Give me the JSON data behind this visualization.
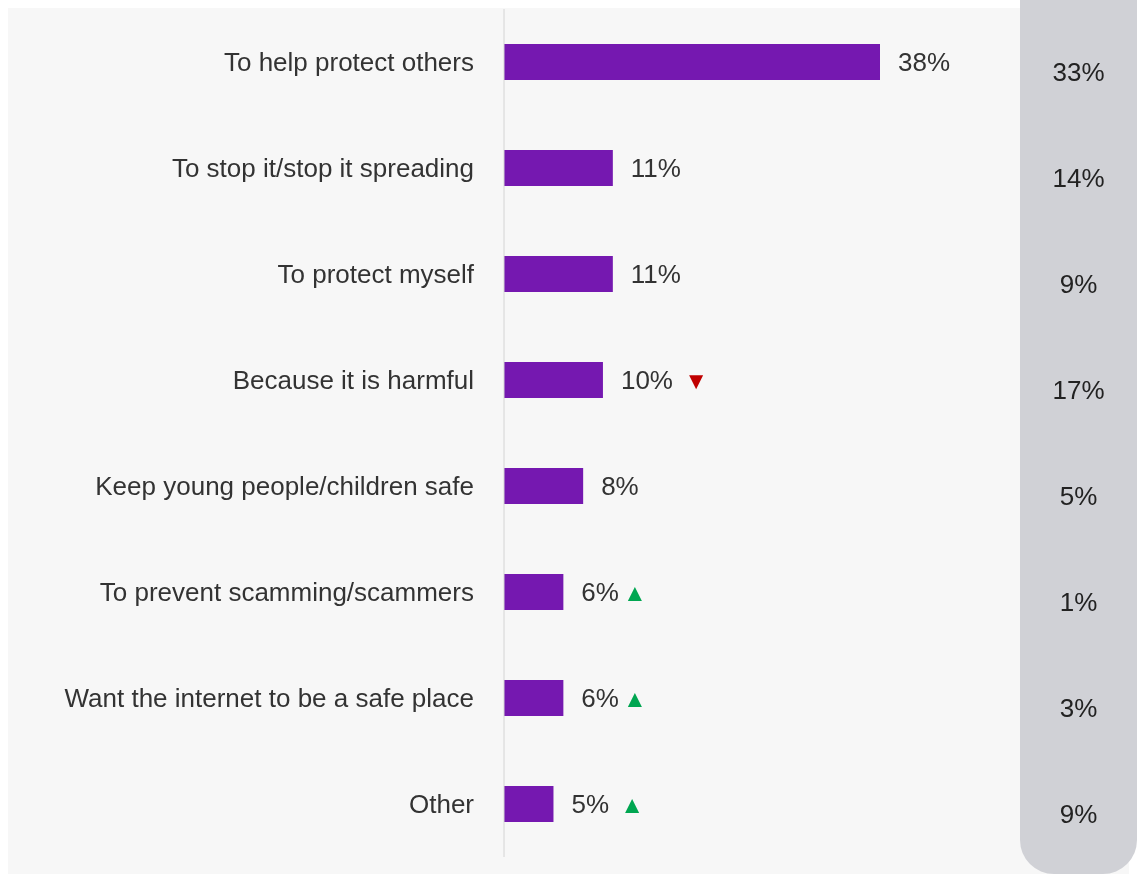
{
  "chart_data": {
    "type": "bar",
    "orientation": "horizontal",
    "categories": [
      "To help protect others",
      "To stop it/stop it spreading",
      "To protect myself",
      "Because it is harmful",
      "Keep young people/children safe",
      "To prevent scamming/scammers",
      "Want the internet to be a safe place",
      "Other"
    ],
    "values": [
      38,
      11,
      11,
      10,
      8,
      6,
      6,
      5
    ],
    "value_labels": [
      "38%",
      "11%",
      "11%",
      "10% ▼",
      "8%",
      "6%▲",
      "6%▲",
      "5% ▲"
    ],
    "color": "#7518b0",
    "tick_labels": "y",
    "annotations": [
      "33%",
      "14%",
      "9%",
      "17%",
      "5%",
      "1%",
      "3%",
      "9%"
    ]
  }
}
